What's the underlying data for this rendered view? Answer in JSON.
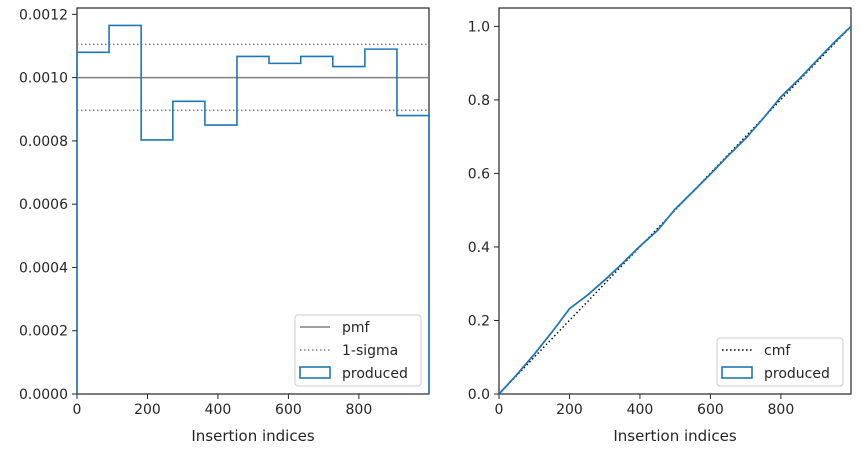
{
  "chart_data": [
    {
      "type": "step-histogram",
      "xlabel": "Insertion indices",
      "ylabel": "",
      "xlim": [
        0,
        999
      ],
      "ylim": [
        0,
        0.00122
      ],
      "xticks": [
        0,
        200,
        400,
        600,
        800
      ],
      "xtick_labels": [
        "0",
        "200",
        "400",
        "600",
        "800"
      ],
      "yticks": [
        0,
        0.0002,
        0.0004,
        0.0006,
        0.0008,
        0.001,
        0.0012
      ],
      "ytick_labels": [
        "0.0000",
        "0.0002",
        "0.0004",
        "0.0006",
        "0.0008",
        "0.0010",
        "0.0012"
      ],
      "bin_edges": [
        0,
        91,
        182,
        272,
        363,
        454,
        545,
        635,
        726,
        817,
        908,
        999
      ],
      "produced": [
        0.00108,
        0.001165,
        0.000803,
        0.000925,
        0.00085,
        0.001067,
        0.001045,
        0.001067,
        0.001035,
        0.00109,
        0.00088
      ],
      "pmf": 0.001,
      "sigma_upper": 0.001105,
      "sigma_lower": 0.000897,
      "legend_position": "lower right",
      "legend": [
        {
          "label": "pmf",
          "style": "solid",
          "color": "#808080"
        },
        {
          "label": "1-sigma",
          "style": "dotted",
          "color": "#808080"
        },
        {
          "label": "produced",
          "style": "patch",
          "color": "#1f77b4"
        }
      ]
    },
    {
      "type": "line",
      "xlabel": "Insertion indices",
      "ylabel": "",
      "xlim": [
        0,
        999
      ],
      "ylim": [
        0,
        1.05
      ],
      "xticks": [
        0,
        200,
        400,
        600,
        800
      ],
      "xtick_labels": [
        "0",
        "200",
        "400",
        "600",
        "800"
      ],
      "yticks": [
        0,
        0.2,
        0.4,
        0.6,
        0.8,
        1.0
      ],
      "ytick_labels": [
        "0.0",
        "0.2",
        "0.4",
        "0.6",
        "0.8",
        "1.0"
      ],
      "cmf": {
        "x": [
          0,
          999
        ],
        "y": [
          0,
          1.0
        ]
      },
      "produced": {
        "x": [
          0,
          50,
          100,
          150,
          200,
          250,
          300,
          350,
          400,
          450,
          500,
          550,
          600,
          650,
          700,
          750,
          800,
          850,
          900,
          950,
          999
        ],
        "y": [
          0,
          0.052,
          0.108,
          0.168,
          0.232,
          0.268,
          0.31,
          0.355,
          0.402,
          0.445,
          0.503,
          0.55,
          0.598,
          0.648,
          0.695,
          0.75,
          0.808,
          0.855,
          0.905,
          0.955,
          1.0
        ]
      },
      "legend_position": "lower right",
      "legend": [
        {
          "label": "cmf",
          "style": "dotted",
          "color": "#000000"
        },
        {
          "label": "produced",
          "style": "patch",
          "color": "#1f77b4"
        }
      ]
    }
  ]
}
